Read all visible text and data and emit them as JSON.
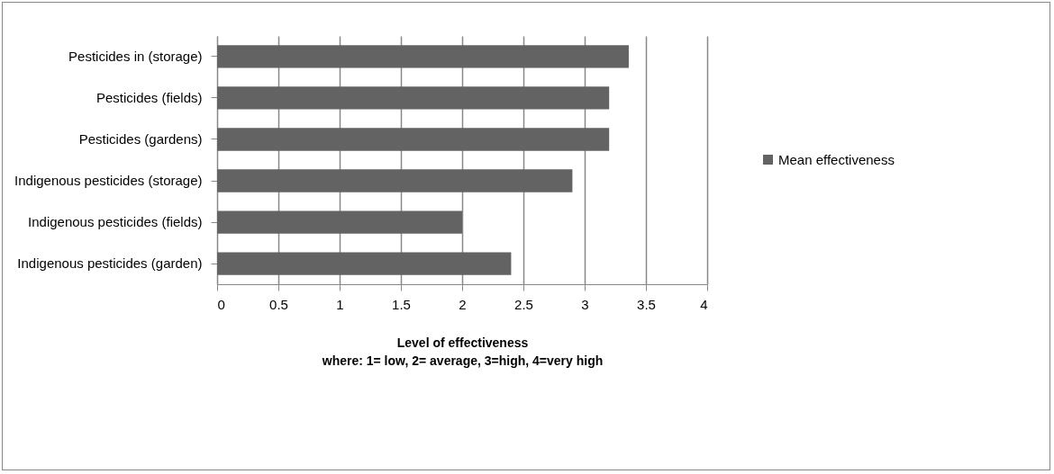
{
  "chart_data": {
    "type": "bar",
    "orientation": "horizontal",
    "categories": [
      "Pesticides in (storage)",
      "Pesticides (fields)",
      "Pesticides (gardens)",
      "Indigenous pesticides (storage)",
      "Indigenous  pesticides (fields)",
      "Indigenous pesticides (garden)"
    ],
    "series": [
      {
        "name": "Mean effectiveness",
        "color": "#636363",
        "values": [
          3.36,
          3.2,
          3.2,
          2.9,
          2.0,
          2.4
        ]
      }
    ],
    "xlim": [
      0,
      4
    ],
    "xticks": [
      0,
      0.5,
      1,
      1.5,
      2,
      2.5,
      3,
      3.5,
      4
    ],
    "xlabel": "Level of effectiveness\nwhere: 1= low, 2= average, 3=high, 4=very high",
    "grid": "x",
    "legend": "right"
  }
}
